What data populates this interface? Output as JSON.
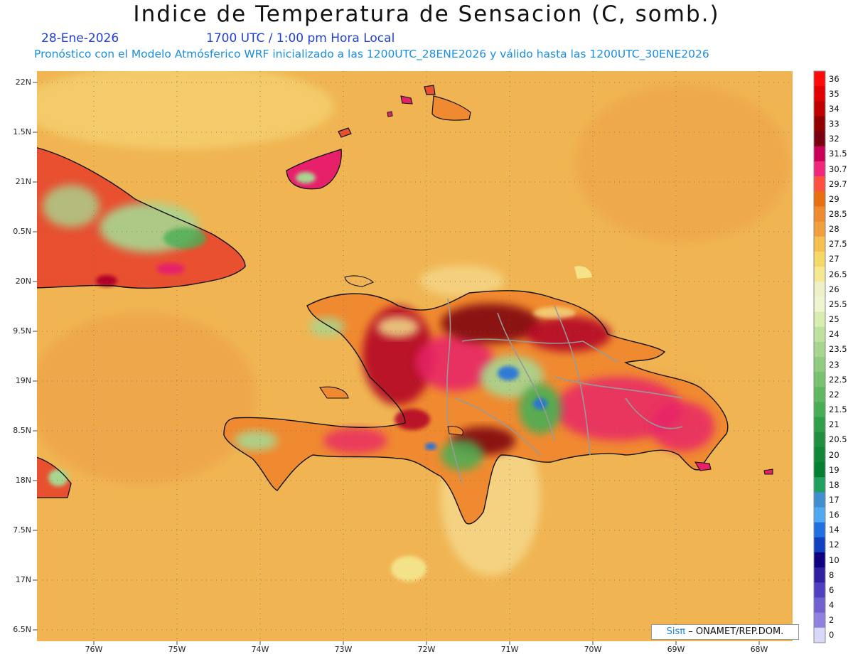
{
  "title": "Indice de Temperatura de Sensacion (C, somb.)",
  "date": "28-Ene-2026",
  "time": "1700 UTC / 1:00 pm Hora Local",
  "forecast_info": "Pronóstico con el Modelo Atmósferico WRF inicializado a las 1200UTC_28ENE2026 y válido hasta las  1200UTC_30ENE2026",
  "credit": {
    "brand": "Sisπ",
    "text": "– ONAMET/REP.DOM."
  },
  "lat_labels": [
    "22N",
    "1.5N",
    "21N",
    "0.5N",
    "20N",
    "9.5N",
    "19N",
    "8.5N",
    "18N",
    "7.5N",
    "17N",
    "6.5N"
  ],
  "lon_labels": [
    "76W",
    "75W",
    "74W",
    "73W",
    "72W",
    "71W",
    "70W",
    "69W",
    "68W"
  ],
  "colorbar": {
    "labels": [
      "36",
      "35",
      "34",
      "33",
      "32",
      "31.5",
      "30.7",
      "29.7",
      "29",
      "28.5",
      "28",
      "27.5",
      "27",
      "26.5",
      "26",
      "25.5",
      "25",
      "24",
      "23.5",
      "23",
      "22.5",
      "22",
      "21.5",
      "21",
      "20.5",
      "20",
      "19",
      "18",
      "17",
      "16",
      "14",
      "12",
      "10",
      "8",
      "6",
      "4",
      "2",
      "0"
    ],
    "colors": [
      "#ff0a0a",
      "#e00000",
      "#c00000",
      "#900000",
      "#7a0010",
      "#c8005a",
      "#f0287a",
      "#ff5040",
      "#e87010",
      "#f08a30",
      "#f0a040",
      "#f5c050",
      "#f5d868",
      "#f5e890",
      "#f0f0c8",
      "#eef5d0",
      "#d8edb0",
      "#c0e0a0",
      "#a8d690",
      "#90cc80",
      "#78c270",
      "#60b860",
      "#48ae55",
      "#309f4a",
      "#209040",
      "#108838",
      "#008030",
      "#20a060",
      "#4090d0",
      "#50a8f0",
      "#2070e0",
      "#1040c0",
      "#100080",
      "#3020a0",
      "#5040c0",
      "#7060d0",
      "#9080e0",
      "#d8d8f8"
    ]
  },
  "map": {
    "background_color": "#f0b452",
    "hot_colors": [
      "#f08a30",
      "#e85030",
      "#e8206a",
      "#b00028",
      "#7a0010"
    ],
    "cool_colors": [
      "#f5e890",
      "#a8d690",
      "#48ae55",
      "#2070e0"
    ]
  }
}
